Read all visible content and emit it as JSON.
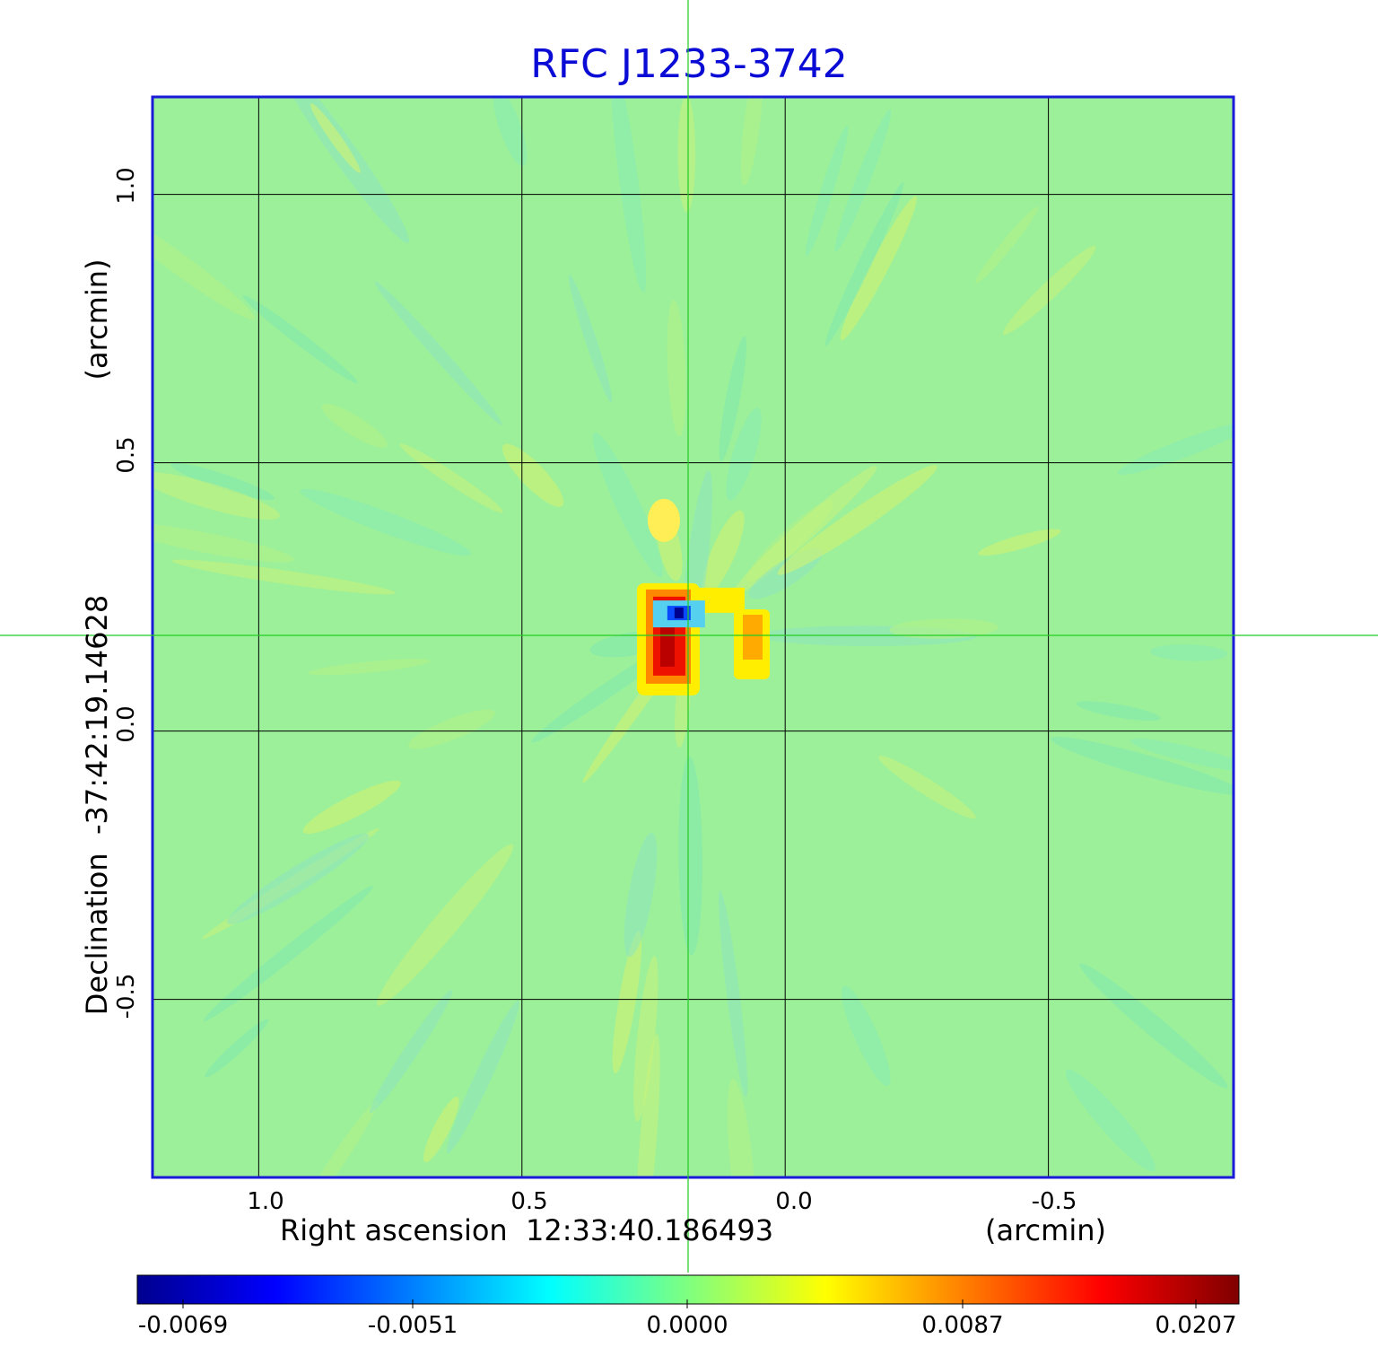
{
  "chart_data": {
    "type": "heatmap",
    "title": "RFC J1233-3742",
    "xlabel": "Right ascension  12:33:40.186493",
    "xunit": "(arcmin)",
    "ylabel": "Declination  -37:42:19.14628",
    "yunit": "(arcmin)",
    "x_ticks": [
      "1.0",
      "0.5",
      "0.0",
      "-0.5"
    ],
    "x_tick_values": [
      1.0,
      0.5,
      0.0,
      -0.5
    ],
    "y_ticks": [
      "1.0",
      "0.5",
      "0.0",
      "-0.5"
    ],
    "y_tick_values": [
      1.0,
      0.5,
      0.0,
      -0.5
    ],
    "xlim": [
      1.2,
      -0.85
    ],
    "ylim": [
      -0.83,
      1.18
    ],
    "grid": true,
    "crosshair": {
      "x": 0.187,
      "y": 0.18
    },
    "colorbar": {
      "ticks": [
        "-0.0069",
        "-0.0051",
        "0.0000",
        "0.0087",
        "0.0207"
      ],
      "range": [
        -0.0069,
        0.0207
      ],
      "colormap": "jet"
    },
    "features": [
      {
        "x": 0.21,
        "y": 0.1,
        "value": 0.0207
      },
      {
        "x": 0.06,
        "y": 0.18,
        "value": 0.0087
      },
      {
        "x": 0.2,
        "y": 0.22,
        "value": -0.0069
      }
    ]
  },
  "colors": {
    "title": "#0b0bd6",
    "frame": "#1a1ad8",
    "background_field": "#9af09a",
    "crosshair": "#22cc22",
    "grid": "#000000"
  }
}
